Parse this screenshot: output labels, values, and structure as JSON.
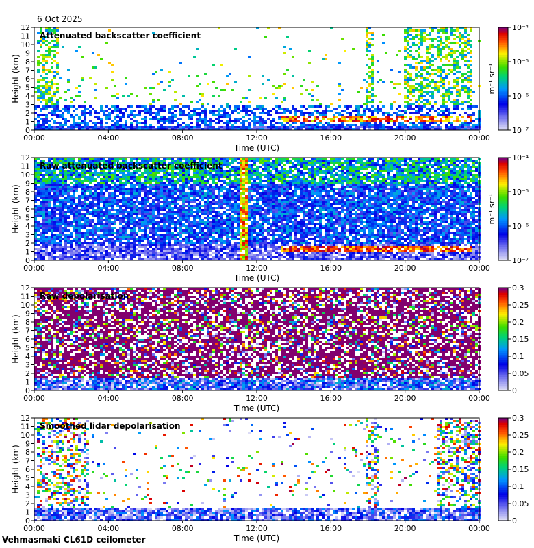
{
  "date": "6 Oct 2025",
  "footer": "Vehmasmaki CL61D ceilometer",
  "chart_data": [
    {
      "type": "heatmap",
      "title": "Attenuated backscatter coefficient",
      "xlabel": "Time (UTC)",
      "ylabel": "Height (km)",
      "x_ticks": [
        "00:00",
        "04:00",
        "08:00",
        "12:00",
        "16:00",
        "20:00",
        "00:00"
      ],
      "y_ticks": [
        "0",
        "1",
        "2",
        "3",
        "4",
        "5",
        "6",
        "7",
        "8",
        "9",
        "10",
        "11",
        "12"
      ],
      "ylim": [
        0,
        12
      ],
      "colorbar": {
        "scale": "log",
        "unit_label": "m⁻¹ sr⁻¹",
        "tick_labels": [
          "10⁻⁷",
          "10⁻⁶",
          "10⁻⁵",
          "10⁻⁴"
        ],
        "range": [
          1e-07,
          0.0001
        ]
      }
    },
    {
      "type": "heatmap",
      "title": "Raw attenuated backscatter coefficient",
      "xlabel": "Time (UTC)",
      "ylabel": "Height (km)",
      "x_ticks": [
        "00:00",
        "04:00",
        "08:00",
        "12:00",
        "16:00",
        "20:00",
        "00:00"
      ],
      "y_ticks": [
        "0",
        "1",
        "2",
        "3",
        "4",
        "5",
        "6",
        "7",
        "8",
        "9",
        "10",
        "11",
        "12"
      ],
      "ylim": [
        0,
        12
      ],
      "colorbar": {
        "scale": "log",
        "unit_label": "m⁻¹ sr⁻¹",
        "tick_labels": [
          "10⁻⁷",
          "10⁻⁶",
          "10⁻⁵",
          "10⁻⁴"
        ],
        "range": [
          1e-07,
          0.0001
        ]
      }
    },
    {
      "type": "heatmap",
      "title": "Raw depolarisation",
      "xlabel": "Time (UTC)",
      "ylabel": "Height (km)",
      "x_ticks": [
        "00:00",
        "04:00",
        "08:00",
        "12:00",
        "16:00",
        "20:00",
        "00:00"
      ],
      "y_ticks": [
        "0",
        "1",
        "2",
        "3",
        "4",
        "5",
        "6",
        "7",
        "8",
        "9",
        "10",
        "11",
        "12"
      ],
      "ylim": [
        0,
        12
      ],
      "colorbar": {
        "scale": "linear",
        "unit_label": "",
        "tick_labels": [
          "0",
          "0.05",
          "0.1",
          "0.15",
          "0.2",
          "0.25",
          "0.3"
        ],
        "range": [
          0,
          0.3
        ]
      }
    },
    {
      "type": "heatmap",
      "title": "Smoothed lidar depolarisation",
      "xlabel": "Time (UTC)",
      "ylabel": "Height (km)",
      "x_ticks": [
        "00:00",
        "04:00",
        "08:00",
        "12:00",
        "16:00",
        "20:00",
        "00:00"
      ],
      "y_ticks": [
        "0",
        "1",
        "2",
        "3",
        "4",
        "5",
        "6",
        "7",
        "8",
        "9",
        "10",
        "11",
        "12"
      ],
      "ylim": [
        0,
        12
      ],
      "colorbar": {
        "scale": "linear",
        "unit_label": "",
        "tick_labels": [
          "0",
          "0.05",
          "0.1",
          "0.15",
          "0.2",
          "0.25",
          "0.3"
        ],
        "range": [
          0,
          0.3
        ]
      }
    }
  ]
}
